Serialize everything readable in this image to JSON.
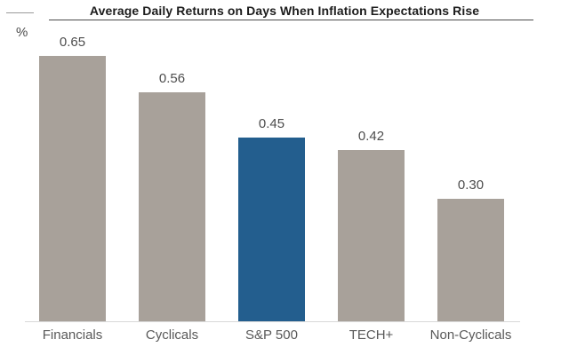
{
  "chart_data": {
    "type": "bar",
    "title": "Average Daily Returns on Days When Inflation Expectations Rise",
    "ylabel": "%",
    "xlabel": "",
    "categories": [
      "Financials",
      "Cyclicals",
      "S&P 500",
      "TECH+",
      "Non-Cyclicals"
    ],
    "values": [
      0.65,
      0.56,
      0.45,
      0.42,
      0.3
    ],
    "value_labels": [
      "0.65",
      "0.56",
      "0.45",
      "0.42",
      "0.30"
    ],
    "highlight_category": "S&P 500",
    "ylim": [
      0,
      0.78
    ],
    "grid": false,
    "legend": false,
    "colors": {
      "bar_default": "#a8a19a",
      "bar_highlight": "#235e8e",
      "baseline": "#d9d9d9",
      "value_label": "#4d4d4d",
      "category_label": "#595959",
      "title": "#1c1c1c"
    }
  }
}
